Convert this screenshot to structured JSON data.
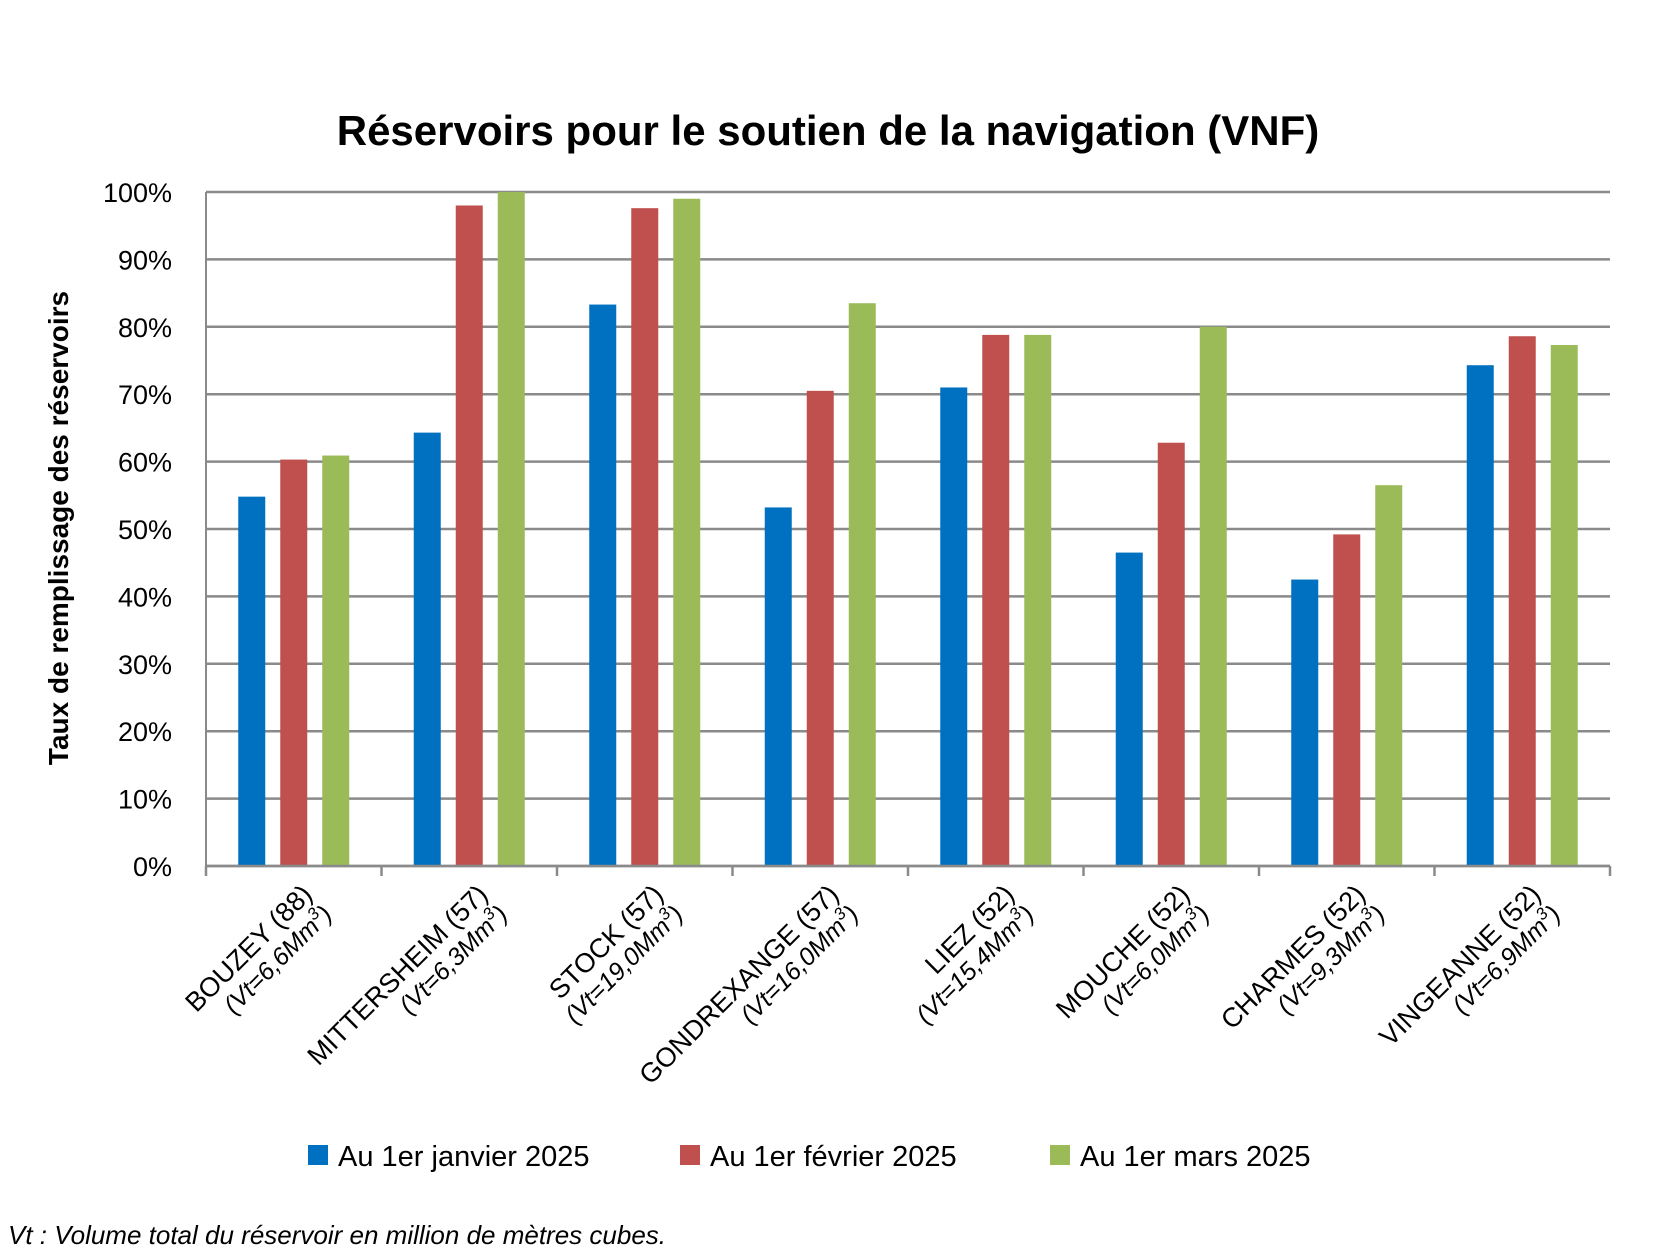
{
  "chart_data": {
    "type": "bar",
    "title": "Réservoirs pour le soutien de la navigation (VNF)",
    "ylabel": "Taux de remplissage des réservoirs",
    "xlabel": "",
    "ylim": [
      0,
      100
    ],
    "yticks": [
      "0%",
      "10%",
      "20%",
      "30%",
      "40%",
      "50%",
      "60%",
      "70%",
      "80%",
      "90%",
      "100%"
    ],
    "grid": true,
    "legend_position": "bottom",
    "categories": [
      {
        "name": "BOUZEY (88)",
        "volume_prefix": "(Vt=6,6Mm",
        "volume_sup": "3",
        "volume_suffix": ")"
      },
      {
        "name": "MITTERSHEIM (57)",
        "volume_prefix": "(Vt=6,3Mm",
        "volume_sup": "3",
        "volume_suffix": ")"
      },
      {
        "name": "STOCK (57)",
        "volume_prefix": "(Vt=19,0Mm",
        "volume_sup": "3",
        "volume_suffix": ")"
      },
      {
        "name": "GONDREXANGE (57)",
        "volume_prefix": "(Vt=16,0Mm",
        "volume_sup": "3",
        "volume_suffix": ")"
      },
      {
        "name": "LIEZ (52)",
        "volume_prefix": "(Vt=15,4Mm",
        "volume_sup": "3",
        "volume_suffix": ")"
      },
      {
        "name": "MOUCHE (52)",
        "volume_prefix": "(Vt=6,0Mm",
        "volume_sup": "3",
        "volume_suffix": ")"
      },
      {
        "name": "CHARMES (52)",
        "volume_prefix": "(Vt=9,3Mm",
        "volume_sup": "3",
        "volume_suffix": ")"
      },
      {
        "name": "VINGEANNE (52)",
        "volume_prefix": "(Vt=6,9Mm",
        "volume_sup": "3",
        "volume_suffix": ")"
      }
    ],
    "series": [
      {
        "name": "Au 1er janvier 2025",
        "color": "#0070C0",
        "values": [
          54.8,
          64.3,
          83.3,
          53.2,
          71.0,
          46.5,
          42.5,
          74.3
        ]
      },
      {
        "name": "Au 1er février 2025",
        "color": "#C0504D",
        "values": [
          60.3,
          98.0,
          97.6,
          70.5,
          78.8,
          62.8,
          49.2,
          78.6
        ]
      },
      {
        "name": "Au 1er mars 2025",
        "color": "#9BBB59",
        "values": [
          60.9,
          100.0,
          99.0,
          83.5,
          78.8,
          80.0,
          56.5,
          77.3
        ]
      }
    ],
    "footnote": "Vt : Volume total du réservoir en million de mètres cubes."
  }
}
